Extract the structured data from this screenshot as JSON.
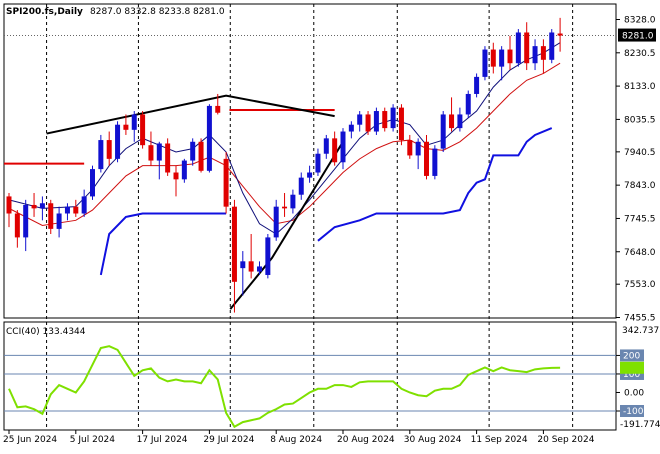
{
  "header": {
    "symbol_label": "SPI200.fs,Daily",
    "ohlc_label": "8287.0 8332.8 8233.8 8281.0"
  },
  "cci": {
    "label": "CCI(40) 133.4344",
    "scale_top": "342.7377",
    "scale_bottom": "-191.7744"
  },
  "colors": {
    "bull": "#1010d0",
    "bear": "#e00000",
    "sma_short": "#10107a",
    "sma_long": "#d01010",
    "trail": "#1010e0",
    "cci": "#7fe000",
    "trend": "#000000",
    "resistance": "#e00000",
    "grid": "#000000",
    "cci_level": "#6a86b0"
  },
  "chart_data": [
    {
      "type": "candlestick",
      "title": "SPI200.fs,Daily",
      "last_price": 8281.0,
      "ylim": [
        7455.5,
        8340
      ],
      "price_ticks": [
        "8328.0",
        "8230.5",
        "8133.0",
        "8035.5",
        "7940.5",
        "7843.0",
        "7745.5",
        "7648.0",
        "7553.0",
        "7455.5"
      ],
      "x_ticks": [
        {
          "i": 0,
          "label": "25 Jun 2024"
        },
        {
          "i": 8,
          "label": "5 Jul 2024"
        },
        {
          "i": 16,
          "label": "17 Jul 2024"
        },
        {
          "i": 24,
          "label": "29 Jul 2024"
        },
        {
          "i": 32,
          "label": "8 Aug 2024"
        },
        {
          "i": 40,
          "label": "20 Aug 2024"
        },
        {
          "i": 48,
          "label": "30 Aug 2024"
        },
        {
          "i": 56,
          "label": "11 Sep 2024"
        },
        {
          "i": 64,
          "label": "20 Sep 2024"
        }
      ],
      "vgrid_i": [
        4.5,
        15.5,
        26.5,
        36.5,
        46.5,
        57.5,
        67.5
      ],
      "candles": [
        [
          7810,
          7820,
          7720,
          7760
        ],
        [
          7760,
          7770,
          7660,
          7690
        ],
        [
          7690,
          7800,
          7650,
          7785
        ],
        [
          7785,
          7820,
          7750,
          7775
        ],
        [
          7775,
          7810,
          7740,
          7790
        ],
        [
          7790,
          7800,
          7700,
          7715
        ],
        [
          7715,
          7780,
          7690,
          7760
        ],
        [
          7760,
          7790,
          7740,
          7780
        ],
        [
          7780,
          7800,
          7750,
          7760
        ],
        [
          7760,
          7830,
          7750,
          7810
        ],
        [
          7810,
          7900,
          7800,
          7890
        ],
        [
          7890,
          7990,
          7880,
          7975
        ],
        [
          7975,
          8000,
          7900,
          7920
        ],
        [
          7920,
          8030,
          7910,
          8020
        ],
        [
          8020,
          8050,
          7990,
          8005
        ],
        [
          8005,
          8060,
          7970,
          8050
        ],
        [
          8050,
          8060,
          7950,
          7960
        ],
        [
          7960,
          8000,
          7900,
          7915
        ],
        [
          7915,
          7970,
          7860,
          7965
        ],
        [
          7965,
          7980,
          7870,
          7880
        ],
        [
          7880,
          7900,
          7810,
          7860
        ],
        [
          7860,
          7920,
          7850,
          7915
        ],
        [
          7915,
          7980,
          7900,
          7970
        ],
        [
          7970,
          7980,
          7880,
          7885
        ],
        [
          7885,
          8080,
          7880,
          8075
        ],
        [
          8075,
          8110,
          8050,
          8055
        ],
        [
          7920,
          7940,
          7760,
          7780
        ],
        [
          7780,
          7800,
          7470,
          7560
        ],
        [
          7600,
          7650,
          7520,
          7620
        ],
        [
          7620,
          7700,
          7570,
          7590
        ],
        [
          7590,
          7620,
          7580,
          7605
        ],
        [
          7580,
          7700,
          7570,
          7690
        ],
        [
          7690,
          7800,
          7680,
          7780
        ],
        [
          7780,
          7820,
          7750,
          7775
        ],
        [
          7775,
          7830,
          7760,
          7815
        ],
        [
          7815,
          7880,
          7800,
          7865
        ],
        [
          7865,
          7900,
          7850,
          7880
        ],
        [
          7880,
          7950,
          7870,
          7935
        ],
        [
          7935,
          7990,
          7920,
          7980
        ],
        [
          7980,
          8000,
          7900,
          7910
        ],
        [
          7910,
          8010,
          7890,
          8000
        ],
        [
          8000,
          8030,
          7980,
          8020
        ],
        [
          8020,
          8060,
          8000,
          8050
        ],
        [
          8050,
          8060,
          7990,
          8000
        ],
        [
          8000,
          8070,
          7990,
          8060
        ],
        [
          8060,
          8070,
          8000,
          8010
        ],
        [
          8010,
          8080,
          8000,
          8070
        ],
        [
          8070,
          8080,
          7960,
          7975
        ],
        [
          7975,
          7990,
          7920,
          7930
        ],
        [
          7930,
          7980,
          7890,
          7970
        ],
        [
          7970,
          7990,
          7860,
          7870
        ],
        [
          7870,
          7960,
          7860,
          7950
        ],
        [
          7950,
          8060,
          7940,
          8050
        ],
        [
          8050,
          8100,
          8000,
          8010
        ],
        [
          8010,
          8070,
          8000,
          8050
        ],
        [
          8050,
          8120,
          8040,
          8110
        ],
        [
          8110,
          8170,
          8100,
          8160
        ],
        [
          8160,
          8250,
          8150,
          8240
        ],
        [
          8240,
          8260,
          8170,
          8190
        ],
        [
          8190,
          8250,
          8150,
          8240
        ],
        [
          8240,
          8280,
          8180,
          8200
        ],
        [
          8200,
          8300,
          8190,
          8290
        ],
        [
          8290,
          8320,
          8180,
          8200
        ],
        [
          8200,
          8270,
          8180,
          8250
        ],
        [
          8250,
          8270,
          8170,
          8210
        ],
        [
          8210,
          8300,
          8200,
          8290
        ],
        [
          8287.0,
          8332.8,
          8233.8,
          8281.0
        ]
      ],
      "sma_short_pts": [
        [
          0,
          7800
        ],
        [
          4,
          7775
        ],
        [
          8,
          7780
        ],
        [
          10,
          7830
        ],
        [
          12,
          7900
        ],
        [
          14,
          7950
        ],
        [
          16,
          7980
        ],
        [
          18,
          7960
        ],
        [
          20,
          7940
        ],
        [
          22,
          7950
        ],
        [
          24,
          7990
        ],
        [
          26,
          7940
        ],
        [
          28,
          7820
        ],
        [
          30,
          7730
        ],
        [
          32,
          7700
        ],
        [
          34,
          7745
        ],
        [
          36,
          7800
        ],
        [
          38,
          7860
        ],
        [
          40,
          7920
        ],
        [
          42,
          7980
        ],
        [
          44,
          8020
        ],
        [
          46,
          8035
        ],
        [
          48,
          8020
        ],
        [
          50,
          7960
        ],
        [
          52,
          7975
        ],
        [
          54,
          8020
        ],
        [
          56,
          8060
        ],
        [
          58,
          8130
        ],
        [
          60,
          8180
        ],
        [
          62,
          8210
        ],
        [
          64,
          8230
        ],
        [
          66,
          8260
        ]
      ],
      "sma_long_pts": [
        [
          0,
          7775
        ],
        [
          4,
          7725
        ],
        [
          8,
          7740
        ],
        [
          10,
          7770
        ],
        [
          12,
          7820
        ],
        [
          14,
          7870
        ],
        [
          16,
          7900
        ],
        [
          18,
          7900
        ],
        [
          20,
          7900
        ],
        [
          22,
          7905
        ],
        [
          24,
          7925
        ],
        [
          26,
          7900
        ],
        [
          28,
          7840
        ],
        [
          30,
          7780
        ],
        [
          32,
          7730
        ],
        [
          34,
          7740
        ],
        [
          36,
          7780
        ],
        [
          38,
          7830
        ],
        [
          40,
          7880
        ],
        [
          42,
          7920
        ],
        [
          44,
          7950
        ],
        [
          46,
          7970
        ],
        [
          48,
          7975
        ],
        [
          50,
          7950
        ],
        [
          52,
          7945
        ],
        [
          54,
          7970
        ],
        [
          56,
          8010
        ],
        [
          58,
          8060
        ],
        [
          60,
          8110
        ],
        [
          62,
          8150
        ],
        [
          64,
          8170
        ],
        [
          66,
          8200
        ]
      ],
      "trail_segments": [
        [
          [
            11,
            7580
          ],
          [
            12,
            7700
          ],
          [
            14,
            7750
          ],
          [
            16,
            7760
          ],
          [
            26,
            7760
          ]
        ],
        [
          [
            37,
            7680
          ],
          [
            39,
            7720
          ],
          [
            42,
            7740
          ],
          [
            44,
            7760
          ],
          [
            52,
            7760
          ],
          [
            54,
            7770
          ],
          [
            55,
            7820
          ],
          [
            56,
            7850
          ],
          [
            57,
            7860
          ],
          [
            58,
            7930
          ],
          [
            61,
            7930
          ],
          [
            62,
            7970
          ],
          [
            63,
            7990
          ],
          [
            65,
            8010
          ]
        ]
      ],
      "trend_lines": [
        [
          [
            4.5,
            7994
          ],
          [
            26,
            8105
          ],
          [
            39,
            8045
          ]
        ],
        [
          [
            26.5,
            7480
          ],
          [
            31.5,
            7630
          ],
          [
            40,
            7970
          ]
        ]
      ],
      "resistance_lines": [
        {
          "from_i": 0,
          "to_i": 9,
          "y": 7906
        },
        {
          "from_i": 27,
          "to_i": 39,
          "y": 8063
        }
      ]
    },
    {
      "type": "line",
      "title": "CCI(40) 133.4344",
      "ylim": [
        -191.7744,
        342.7377
      ],
      "yticks": [
        200,
        100,
        0.0,
        -100
      ],
      "tick_labels": [
        "200",
        "100",
        "0.00",
        "-100"
      ],
      "levels": [
        200,
        100,
        -100
      ],
      "values": [
        [
          0,
          20
        ],
        [
          1,
          -80
        ],
        [
          2,
          -75
        ],
        [
          3,
          -90
        ],
        [
          4,
          -115
        ],
        [
          5,
          -10
        ],
        [
          6,
          40
        ],
        [
          7,
          20
        ],
        [
          8,
          0
        ],
        [
          9,
          60
        ],
        [
          10,
          150
        ],
        [
          11,
          240
        ],
        [
          12,
          250
        ],
        [
          13,
          230
        ],
        [
          14,
          160
        ],
        [
          15,
          90
        ],
        [
          16,
          120
        ],
        [
          17,
          130
        ],
        [
          18,
          80
        ],
        [
          19,
          60
        ],
        [
          20,
          70
        ],
        [
          21,
          60
        ],
        [
          22,
          60
        ],
        [
          23,
          50
        ],
        [
          24,
          120
        ],
        [
          25,
          70
        ],
        [
          26,
          -110
        ],
        [
          27,
          -185
        ],
        [
          28,
          -160
        ],
        [
          29,
          -150
        ],
        [
          30,
          -140
        ],
        [
          31,
          -110
        ],
        [
          32,
          -90
        ],
        [
          33,
          -65
        ],
        [
          34,
          -60
        ],
        [
          35,
          -30
        ],
        [
          36,
          0
        ],
        [
          37,
          20
        ],
        [
          38,
          20
        ],
        [
          39,
          40
        ],
        [
          40,
          40
        ],
        [
          41,
          30
        ],
        [
          42,
          55
        ],
        [
          43,
          60
        ],
        [
          44,
          60
        ],
        [
          45,
          60
        ],
        [
          46,
          60
        ],
        [
          47,
          20
        ],
        [
          48,
          0
        ],
        [
          49,
          -15
        ],
        [
          50,
          -20
        ],
        [
          51,
          10
        ],
        [
          52,
          20
        ],
        [
          53,
          20
        ],
        [
          54,
          40
        ],
        [
          55,
          95
        ],
        [
          56,
          115
        ],
        [
          57,
          135
        ],
        [
          58,
          115
        ],
        [
          59,
          135
        ],
        [
          60,
          120
        ],
        [
          61,
          115
        ],
        [
          62,
          110
        ],
        [
          63,
          125
        ],
        [
          64,
          130
        ],
        [
          65,
          133
        ],
        [
          66,
          133.4344
        ]
      ]
    }
  ]
}
